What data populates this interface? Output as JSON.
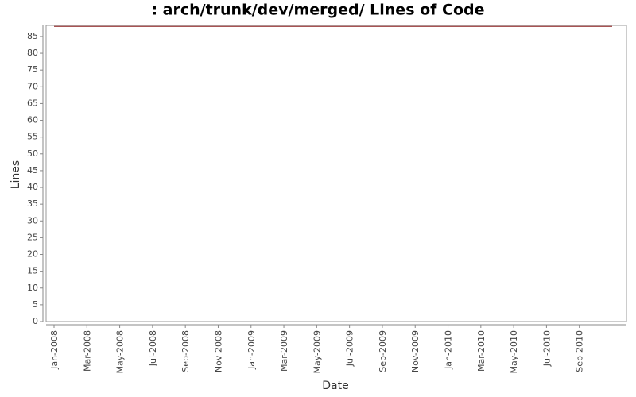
{
  "chart_data": {
    "type": "line",
    "title": ": arch/trunk/dev/merged/ Lines of Code",
    "x_label": "Date",
    "y_label": "Lines",
    "x": [
      "2008-01",
      "2010-11"
    ],
    "series": [
      {
        "name": "Lines",
        "color": "#8b1a1a",
        "values": [
          88,
          88
        ]
      }
    ],
    "xlim": [
      "2008-01",
      "2010-11"
    ],
    "xticks": [
      {
        "value": "2008-01",
        "label": "Jan-2008"
      },
      {
        "value": "2008-03",
        "label": "Mar-2008"
      },
      {
        "value": "2008-05",
        "label": "May-2008"
      },
      {
        "value": "2008-07",
        "label": "Jul-2008"
      },
      {
        "value": "2008-09",
        "label": "Sep-2008"
      },
      {
        "value": "2008-11",
        "label": "Nov-2008"
      },
      {
        "value": "2009-01",
        "label": "Jan-2009"
      },
      {
        "value": "2009-03",
        "label": "Mar-2009"
      },
      {
        "value": "2009-05",
        "label": "May-2009"
      },
      {
        "value": "2009-07",
        "label": "Jul-2009"
      },
      {
        "value": "2009-09",
        "label": "Sep-2009"
      },
      {
        "value": "2009-11",
        "label": "Nov-2009"
      },
      {
        "value": "2010-01",
        "label": "Jan-2010"
      },
      {
        "value": "2010-03",
        "label": "Mar-2010"
      },
      {
        "value": "2010-05",
        "label": "May-2010"
      },
      {
        "value": "2010-07",
        "label": "Jul-2010"
      },
      {
        "value": "2010-09",
        "label": "Sep-2010"
      }
    ],
    "ylim": [
      0,
      88.3
    ],
    "yticks": [
      0,
      5,
      10,
      15,
      20,
      25,
      30,
      35,
      40,
      45,
      50,
      55,
      60,
      65,
      70,
      75,
      80,
      85
    ]
  }
}
